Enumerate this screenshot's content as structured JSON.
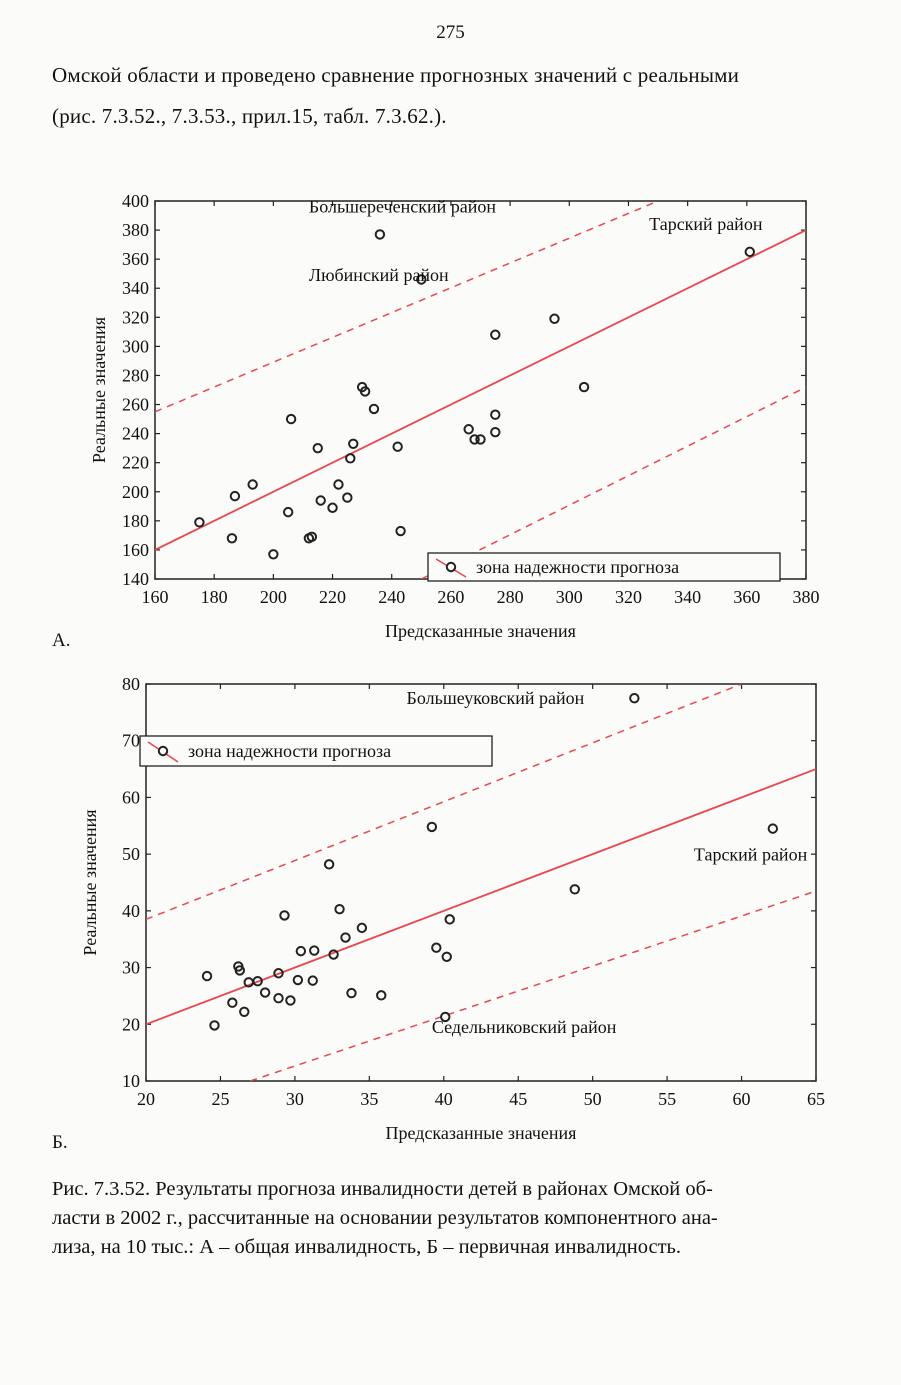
{
  "page_number": "275",
  "intro_lines": [
    "Омской области и проведено сравнение прогнозных значений с реальными",
    "(рис. 7.3.52., 7.3.53., прил.15, табл. 7.3.62.)."
  ],
  "colors": {
    "fit_line": "#e8474d",
    "points": "#222222",
    "frame": "#222222"
  },
  "chart_data": [
    {
      "type": "scatter",
      "panel_label": "А.",
      "xlabel": "Предсказанные значения",
      "ylabel": "Реальные значения",
      "xlim": [
        160,
        380
      ],
      "ylim": [
        140,
        400
      ],
      "xticks": [
        "160",
        "180",
        "200",
        "220",
        "240",
        "260",
        "280",
        "300",
        "320",
        "340",
        "360",
        "380"
      ],
      "yticks": [
        "140",
        "160",
        "180",
        "200",
        "220",
        "240",
        "260",
        "280",
        "300",
        "320",
        "340",
        "360",
        "380",
        "400"
      ],
      "regression_line": [
        [
          160,
          160
        ],
        [
          380,
          380
        ]
      ],
      "confidence_band": {
        "upper": [
          [
            160,
            255
          ],
          [
            330,
            400
          ]
        ],
        "lower": [
          [
            250,
            140
          ],
          [
            380,
            272
          ]
        ]
      },
      "legend": {
        "label": "зона надежности прогноза",
        "position": "bottom-right"
      },
      "annotations": [
        {
          "text": "Большереченский район",
          "x": 212,
          "y": 392
        },
        {
          "text": "Любинский район",
          "x": 212,
          "y": 345
        },
        {
          "text": "Тарский район",
          "x": 327,
          "y": 380
        }
      ],
      "points": [
        [
          175,
          179
        ],
        [
          186,
          168
        ],
        [
          187,
          197
        ],
        [
          193,
          205
        ],
        [
          200,
          157
        ],
        [
          205,
          186
        ],
        [
          206,
          250
        ],
        [
          212,
          168
        ],
        [
          213,
          169
        ],
        [
          215,
          230
        ],
        [
          216,
          194
        ],
        [
          220,
          189
        ],
        [
          222,
          205
        ],
        [
          225,
          196
        ],
        [
          226,
          223
        ],
        [
          227,
          233
        ],
        [
          230,
          272
        ],
        [
          231,
          269
        ],
        [
          234,
          257
        ],
        [
          236,
          377
        ],
        [
          242,
          231
        ],
        [
          243,
          173
        ],
        [
          250,
          346
        ],
        [
          266,
          243
        ],
        [
          268,
          236
        ],
        [
          270,
          236
        ],
        [
          275,
          308
        ],
        [
          275,
          253
        ],
        [
          275,
          241
        ],
        [
          295,
          319
        ],
        [
          305,
          272
        ],
        [
          361,
          365
        ]
      ]
    },
    {
      "type": "scatter",
      "panel_label": "Б.",
      "xlabel": "Предсказанные значения",
      "ylabel": "Реальные значения",
      "xlim": [
        20,
        65
      ],
      "ylim": [
        10,
        80
      ],
      "xticks": [
        "20",
        "25",
        "30",
        "35",
        "40",
        "45",
        "50",
        "55",
        "60",
        "65"
      ],
      "yticks": [
        "10",
        "20",
        "30",
        "40",
        "50",
        "60",
        "70",
        "80"
      ],
      "regression_line": [
        [
          20,
          20
        ],
        [
          65,
          65
        ]
      ],
      "confidence_band": {
        "upper": [
          [
            20,
            38.5
          ],
          [
            60,
            80
          ]
        ],
        "lower": [
          [
            27,
            10
          ],
          [
            65,
            43.5
          ]
        ]
      },
      "legend": {
        "label": "зона надежности прогноза",
        "position": "top-left"
      },
      "annotations": [
        {
          "text": "Большеуковский район",
          "x": 37.5,
          "y": 76.5
        },
        {
          "text": "Тарский район",
          "x": 56.8,
          "y": 48.9
        },
        {
          "text": "Седельниковский район",
          "x": 39.2,
          "y": 18.5
        }
      ],
      "points": [
        [
          24.1,
          28.5
        ],
        [
          24.6,
          19.8
        ],
        [
          25.8,
          23.8
        ],
        [
          26.2,
          30.2
        ],
        [
          26.3,
          29.5
        ],
        [
          26.6,
          22.2
        ],
        [
          26.9,
          27.4
        ],
        [
          27.5,
          27.6
        ],
        [
          28.0,
          25.6
        ],
        [
          28.9,
          29.0
        ],
        [
          28.9,
          24.6
        ],
        [
          29.3,
          39.2
        ],
        [
          29.7,
          24.2
        ],
        [
          30.2,
          27.8
        ],
        [
          30.4,
          32.9
        ],
        [
          31.2,
          27.7
        ],
        [
          31.3,
          33.0
        ],
        [
          32.3,
          48.2
        ],
        [
          32.6,
          32.3
        ],
        [
          33.0,
          40.3
        ],
        [
          33.4,
          35.3
        ],
        [
          33.8,
          25.5
        ],
        [
          34.5,
          37.0
        ],
        [
          35.8,
          25.1
        ],
        [
          39.2,
          54.8
        ],
        [
          39.5,
          33.5
        ],
        [
          40.1,
          21.3
        ],
        [
          40.2,
          31.9
        ],
        [
          40.4,
          38.5
        ],
        [
          48.8,
          43.8
        ],
        [
          52.8,
          77.5
        ],
        [
          62.1,
          54.5
        ]
      ]
    }
  ],
  "caption_lines": [
    "Рис. 7.3.52. Результаты прогноза инвалидности детей в районах Омской об-",
    "ласти в 2002 г., рассчитанные на основании результатов компонентного ана-",
    "лиза, на 10 тыс.: А – общая инвалидность, Б – первичная инвалидность."
  ]
}
